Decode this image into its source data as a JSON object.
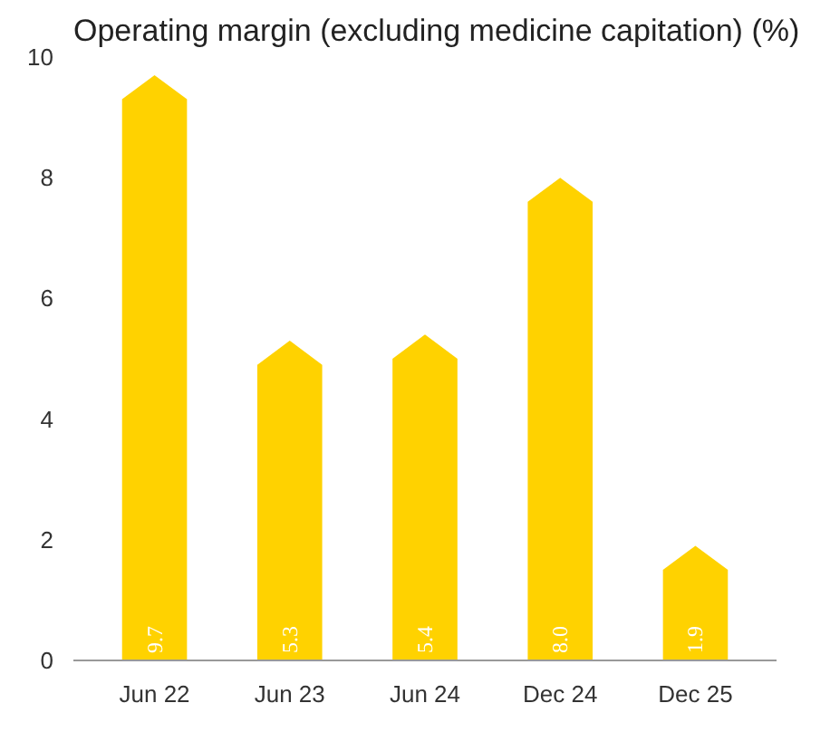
{
  "chart_data": {
    "type": "bar",
    "title": "Operating margin (excluding medicine capitation) (%)",
    "categories": [
      "Jun 22",
      "Jun 23",
      "Jun 24",
      "Dec 24",
      "Dec 25"
    ],
    "values": [
      9.7,
      5.3,
      5.4,
      8.0,
      1.9
    ],
    "color": "#ffd200",
    "ylim": [
      0,
      10
    ],
    "yticks": [
      0,
      2,
      4,
      6,
      8,
      10
    ],
    "grid": false,
    "value_labels": [
      "9.7",
      "5.3",
      "5.4",
      "8.0",
      "1.9"
    ]
  }
}
